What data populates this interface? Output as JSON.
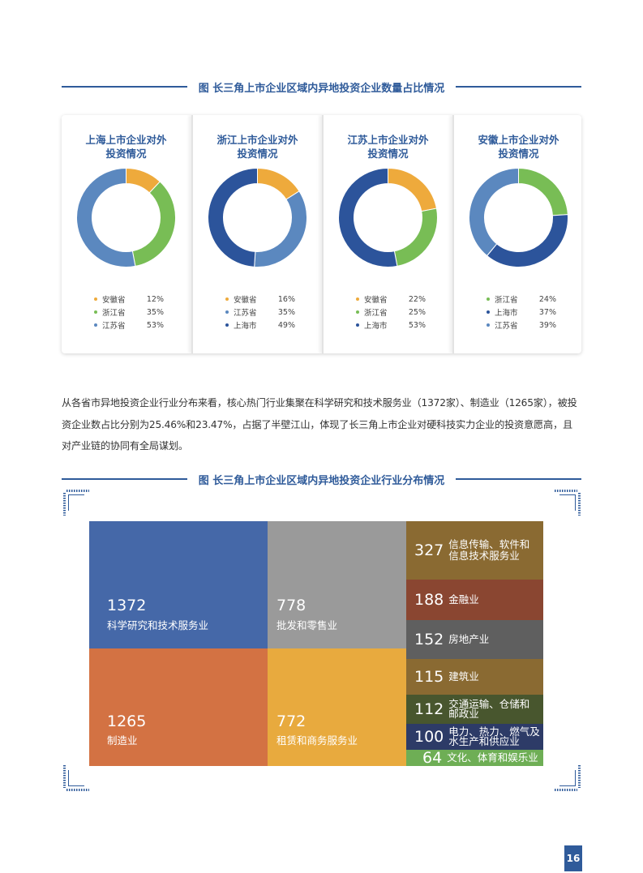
{
  "figure1": {
    "title": "图 长三角上市企业区域内异地投资企业数量占比情况",
    "cards": [
      {
        "title_line1": "上海上市企业对外",
        "title_line2": "投资情况",
        "slices": [
          {
            "label": "安徽省",
            "value": 12,
            "display": "12%",
            "color": "#eeaa3c"
          },
          {
            "label": "浙江省",
            "value": 35,
            "display": "35%",
            "color": "#78bd55"
          },
          {
            "label": "江苏省",
            "value": 53,
            "display": "53%",
            "color": "#5b88bf"
          }
        ]
      },
      {
        "title_line1": "浙江上市企业对外",
        "title_line2": "投资情况",
        "slices": [
          {
            "label": "安徽省",
            "value": 16,
            "display": "16%",
            "color": "#eeaa3c"
          },
          {
            "label": "江苏省",
            "value": 35,
            "display": "35%",
            "color": "#5b88bf"
          },
          {
            "label": "上海市",
            "value": 49,
            "display": "49%",
            "color": "#2c549b"
          }
        ]
      },
      {
        "title_line1": "江苏上市企业对外",
        "title_line2": "投资情况",
        "slices": [
          {
            "label": "安徽省",
            "value": 22,
            "display": "22%",
            "color": "#eeaa3c"
          },
          {
            "label": "浙江省",
            "value": 25,
            "display": "25%",
            "color": "#78bd55"
          },
          {
            "label": "上海市",
            "value": 53,
            "display": "53%",
            "color": "#2c549b"
          }
        ]
      },
      {
        "title_line1": "安徽上市企业对外",
        "title_line2": "投资情况",
        "slices": [
          {
            "label": "浙江省",
            "value": 24,
            "display": "24%",
            "color": "#78bd55"
          },
          {
            "label": "上海市",
            "value": 37,
            "display": "37%",
            "color": "#2c549b"
          },
          {
            "label": "江苏省",
            "value": 39,
            "display": "39%",
            "color": "#5b88bf"
          }
        ]
      }
    ]
  },
  "paragraph": "从各省市异地投资企业行业分布来看，核心热门行业集聚在科学研究和技术服务业（1372家）、制造业（1265家），被投资企业数占比分别为25.46%和23.47%，占据了半壁江山，体现了长三角上市企业对硬科技实力企业的投资意愿高，且对产业链的协同有全局谋划。",
  "figure2": {
    "title": "图 长三角上市企业区域内异地投资企业行业分布情况"
  },
  "chart_data": [
    {
      "type": "pie",
      "title": "上海上市企业对外投资情况",
      "labels": [
        "安徽省",
        "浙江省",
        "江苏省"
      ],
      "values": [
        12,
        35,
        53
      ]
    },
    {
      "type": "pie",
      "title": "浙江上市企业对外投资情况",
      "labels": [
        "安徽省",
        "江苏省",
        "上海市"
      ],
      "values": [
        16,
        35,
        49
      ]
    },
    {
      "type": "pie",
      "title": "江苏上市企业对外投资情况",
      "labels": [
        "安徽省",
        "浙江省",
        "上海市"
      ],
      "values": [
        22,
        25,
        53
      ]
    },
    {
      "type": "pie",
      "title": "安徽上市企业对外投资情况",
      "labels": [
        "浙江省",
        "上海市",
        "江苏省"
      ],
      "values": [
        24,
        37,
        39
      ]
    },
    {
      "type": "treemap",
      "title": "图 长三角上市企业区域内异地投资企业行业分布情况",
      "items": [
        {
          "label": "科学研究和技术服务业",
          "value": 1372,
          "color": "#4568a8"
        },
        {
          "label": "制造业",
          "value": 1265,
          "color": "#d37243"
        },
        {
          "label": "批发和零售业",
          "value": 778,
          "color": "#9a9a9a"
        },
        {
          "label": "租赁和商务服务业",
          "value": 772,
          "color": "#e8aa3e"
        },
        {
          "label_line1": "信息传输、软件和",
          "label_line2": "信息技术服务业",
          "value": 327,
          "color": "#8a6a32"
        },
        {
          "label": "金融业",
          "value": 188,
          "color": "#8a4631"
        },
        {
          "label": "房地产业",
          "value": 152,
          "color": "#5f5f5f"
        },
        {
          "label": "建筑业",
          "value": 115,
          "color": "#8a6a32"
        },
        {
          "label_line1": "交通运输、仓储和",
          "label_line2": "邮政业",
          "value": 112,
          "color": "#48562e"
        },
        {
          "label_line1": "电力、热力、燃气及",
          "label_line2": "水生产和供应业",
          "value": 100,
          "color": "#2d3b67"
        },
        {
          "label": "文化、体育和娱乐业",
          "value": 64,
          "color": "#6eae55"
        }
      ]
    }
  ],
  "page_number": "16"
}
